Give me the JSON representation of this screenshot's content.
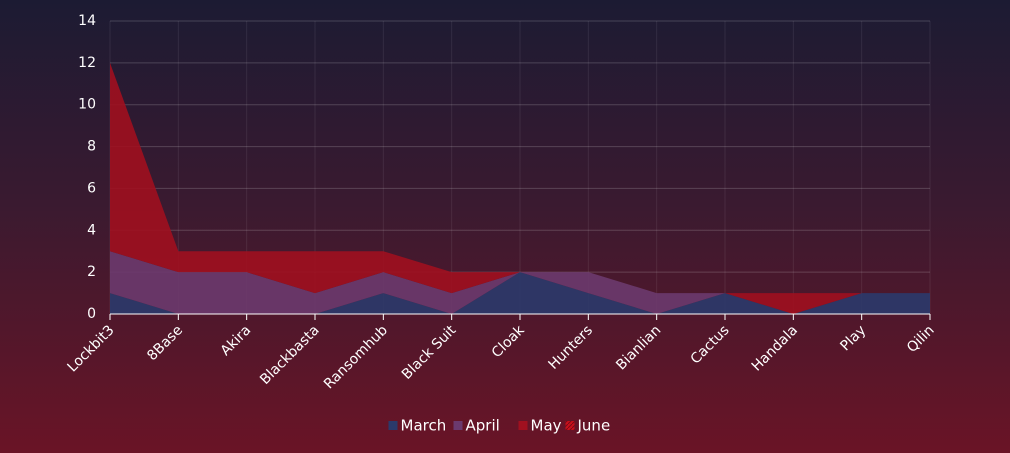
{
  "chart_data": {
    "type": "stacked-area",
    "categories": [
      "Lockbit3",
      "8Base",
      "Akira",
      "Blackbasta",
      "Ransomhub",
      "Black Suit",
      "Cloak",
      "Hunters",
      "Bianlian",
      "Cactus",
      "Handala",
      "Play",
      "Qilin"
    ],
    "series": [
      {
        "name": "March",
        "color": "#2b3a6b",
        "values": [
          1,
          0,
          0,
          0,
          1,
          0,
          2,
          1,
          0,
          1,
          0,
          1,
          1
        ]
      },
      {
        "name": "April",
        "color": "#6b3a6e",
        "values": [
          2,
          2,
          2,
          1,
          1,
          1,
          0,
          1,
          1,
          0,
          0,
          0,
          0
        ]
      },
      {
        "name": "May",
        "color": "#a0101f",
        "values": [
          9,
          1,
          1,
          2,
          1,
          1,
          0,
          0,
          0,
          0,
          1,
          0,
          0
        ]
      },
      {
        "name": "June",
        "color": "#c8101c",
        "values": [
          0,
          0,
          0,
          0,
          0,
          0,
          0,
          0,
          0,
          0,
          0,
          0,
          0
        ]
      }
    ],
    "ylim": [
      0,
      14
    ],
    "yticks": [
      0,
      2,
      4,
      6,
      8,
      10,
      12,
      14
    ],
    "grid": true,
    "legend": "bottom"
  }
}
